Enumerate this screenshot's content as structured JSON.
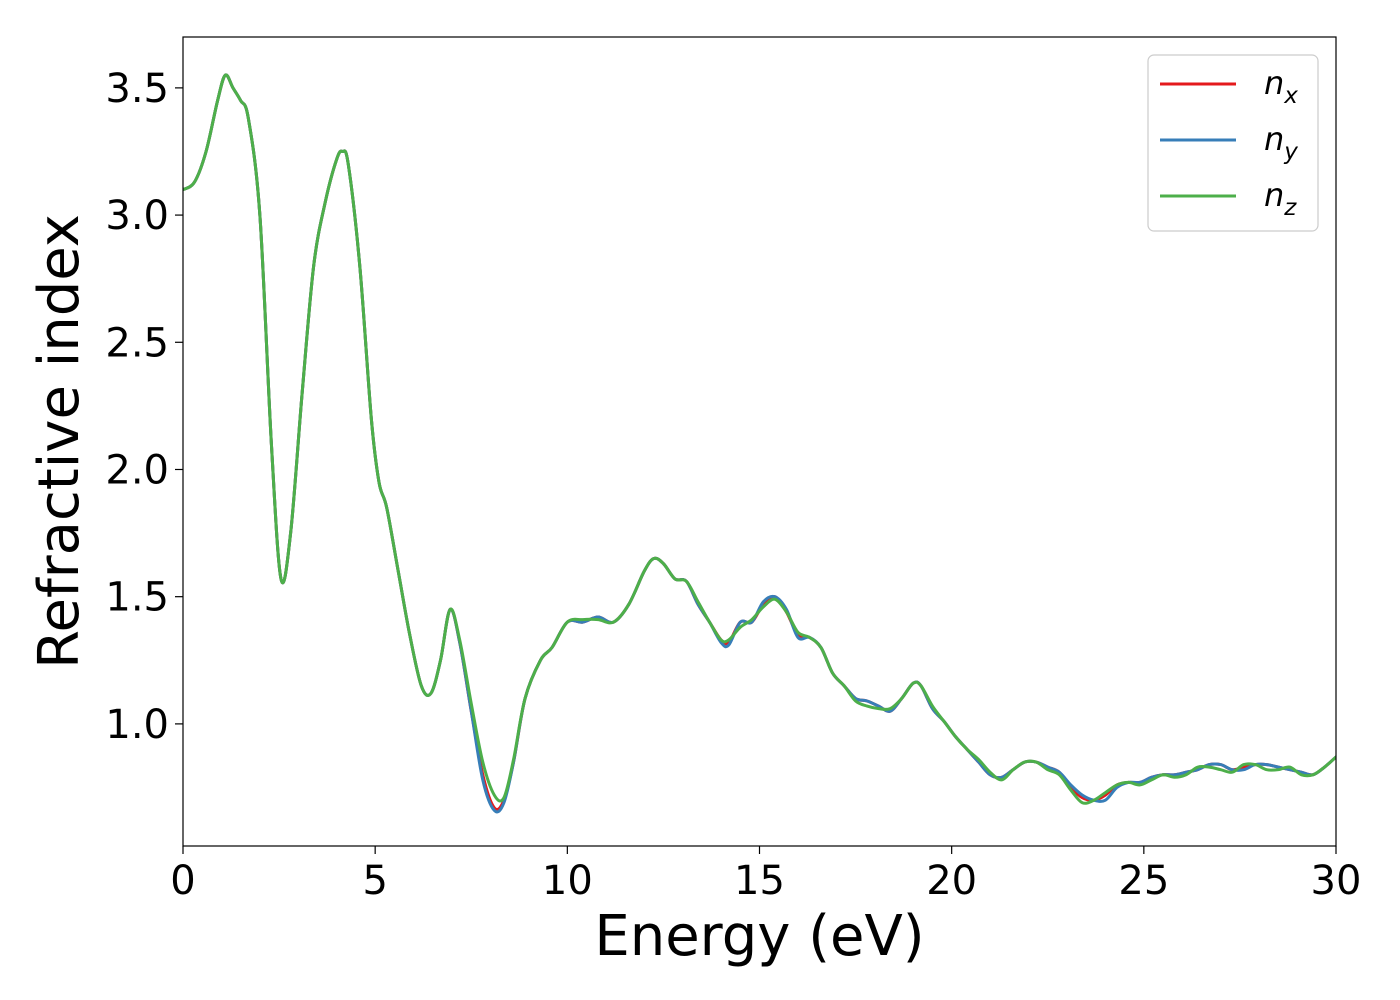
{
  "chart_data": {
    "type": "line",
    "xlabel": "Energy (eV)",
    "ylabel": "Refractive index",
    "xlim": [
      0,
      30
    ],
    "ylim": [
      0.52,
      3.7
    ],
    "xticks": [
      0,
      5,
      10,
      15,
      20,
      25,
      30
    ],
    "yticks": [
      1.0,
      1.5,
      2.0,
      2.5,
      3.0,
      3.5
    ],
    "ytick_labels": [
      "1.0",
      "1.5",
      "2.0",
      "2.5",
      "3.0",
      "3.5"
    ],
    "grid": false,
    "legend_position": "top-right",
    "series": [
      {
        "name": "n_x",
        "label_base": "n",
        "label_sub": "x",
        "color": "#e41a1c",
        "x": [
          0,
          0.3,
          0.6,
          0.9,
          1.1,
          1.3,
          1.5,
          1.7,
          2.0,
          2.3,
          2.55,
          2.8,
          3.1,
          3.4,
          3.7,
          4.0,
          4.15,
          4.3,
          4.6,
          4.9,
          5.1,
          5.3,
          5.6,
          5.9,
          6.2,
          6.45,
          6.7,
          6.95,
          7.2,
          7.5,
          7.8,
          8.1,
          8.35,
          8.6,
          8.9,
          9.3,
          9.6,
          10.0,
          10.4,
          10.8,
          11.2,
          11.6,
          12.0,
          12.25,
          12.5,
          12.8,
          13.1,
          13.4,
          13.7,
          14.0,
          14.2,
          14.5,
          14.8,
          15.1,
          15.4,
          15.7,
          16.0,
          16.3,
          16.6,
          16.9,
          17.2,
          17.5,
          17.8,
          18.1,
          18.4,
          18.7,
          19.0,
          19.2,
          19.5,
          19.8,
          20.1,
          20.4,
          20.7,
          21.0,
          21.3,
          21.6,
          21.9,
          22.2,
          22.5,
          22.8,
          23.1,
          23.4,
          23.7,
          24.0,
          24.3,
          24.6,
          24.9,
          25.2,
          25.5,
          25.8,
          26.1,
          26.4,
          26.7,
          27.0,
          27.3,
          27.6,
          27.9,
          28.2,
          28.5,
          28.8,
          29.1,
          29.4,
          29.7,
          30.0
        ],
        "y": [
          3.1,
          3.13,
          3.25,
          3.45,
          3.55,
          3.5,
          3.45,
          3.38,
          3.0,
          2.1,
          1.57,
          1.75,
          2.3,
          2.8,
          3.05,
          3.22,
          3.25,
          3.2,
          2.8,
          2.2,
          1.95,
          1.85,
          1.6,
          1.35,
          1.15,
          1.12,
          1.25,
          1.45,
          1.32,
          1.05,
          0.8,
          0.67,
          0.7,
          0.85,
          1.1,
          1.25,
          1.3,
          1.4,
          1.4,
          1.42,
          1.4,
          1.47,
          1.6,
          1.65,
          1.63,
          1.57,
          1.56,
          1.47,
          1.4,
          1.33,
          1.32,
          1.4,
          1.4,
          1.47,
          1.5,
          1.44,
          1.35,
          1.34,
          1.3,
          1.2,
          1.15,
          1.1,
          1.09,
          1.07,
          1.05,
          1.1,
          1.16,
          1.15,
          1.06,
          1.01,
          0.95,
          0.9,
          0.85,
          0.8,
          0.79,
          0.82,
          0.85,
          0.85,
          0.83,
          0.81,
          0.75,
          0.71,
          0.7,
          0.72,
          0.76,
          0.77,
          0.77,
          0.79,
          0.8,
          0.8,
          0.81,
          0.82,
          0.84,
          0.84,
          0.82,
          0.83,
          0.84,
          0.84,
          0.83,
          0.82,
          0.81,
          0.8,
          0.83,
          0.87
        ]
      },
      {
        "name": "n_y",
        "label_base": "n",
        "label_sub": "y",
        "color": "#377eb8",
        "x": [
          0,
          0.3,
          0.6,
          0.9,
          1.1,
          1.3,
          1.5,
          1.7,
          2.0,
          2.3,
          2.55,
          2.8,
          3.1,
          3.4,
          3.7,
          4.0,
          4.15,
          4.3,
          4.6,
          4.9,
          5.1,
          5.3,
          5.6,
          5.9,
          6.2,
          6.45,
          6.7,
          6.95,
          7.2,
          7.5,
          7.8,
          8.1,
          8.35,
          8.6,
          8.9,
          9.3,
          9.6,
          10.0,
          10.4,
          10.8,
          11.2,
          11.6,
          12.0,
          12.25,
          12.5,
          12.8,
          13.1,
          13.4,
          13.7,
          14.0,
          14.2,
          14.5,
          14.8,
          15.1,
          15.4,
          15.7,
          16.0,
          16.3,
          16.6,
          16.9,
          17.2,
          17.5,
          17.8,
          18.1,
          18.4,
          18.7,
          19.0,
          19.2,
          19.5,
          19.8,
          20.1,
          20.4,
          20.7,
          21.0,
          21.3,
          21.6,
          21.9,
          22.2,
          22.5,
          22.8,
          23.1,
          23.4,
          23.7,
          24.0,
          24.3,
          24.6,
          24.9,
          25.2,
          25.5,
          25.8,
          26.1,
          26.4,
          26.7,
          27.0,
          27.3,
          27.6,
          27.9,
          28.2,
          28.5,
          28.8,
          29.1,
          29.4,
          29.7,
          30.0
        ],
        "y": [
          3.1,
          3.13,
          3.25,
          3.45,
          3.55,
          3.5,
          3.45,
          3.38,
          3.0,
          2.1,
          1.57,
          1.75,
          2.3,
          2.8,
          3.05,
          3.22,
          3.25,
          3.2,
          2.8,
          2.2,
          1.95,
          1.85,
          1.6,
          1.35,
          1.15,
          1.12,
          1.25,
          1.45,
          1.32,
          1.05,
          0.78,
          0.66,
          0.69,
          0.85,
          1.1,
          1.25,
          1.3,
          1.4,
          1.4,
          1.42,
          1.4,
          1.47,
          1.6,
          1.65,
          1.63,
          1.57,
          1.56,
          1.47,
          1.4,
          1.32,
          1.31,
          1.4,
          1.4,
          1.48,
          1.5,
          1.45,
          1.34,
          1.34,
          1.3,
          1.2,
          1.15,
          1.1,
          1.09,
          1.07,
          1.05,
          1.1,
          1.16,
          1.15,
          1.06,
          1.01,
          0.95,
          0.9,
          0.85,
          0.8,
          0.79,
          0.82,
          0.85,
          0.85,
          0.83,
          0.81,
          0.76,
          0.72,
          0.7,
          0.7,
          0.75,
          0.77,
          0.77,
          0.79,
          0.8,
          0.8,
          0.81,
          0.82,
          0.84,
          0.84,
          0.82,
          0.82,
          0.84,
          0.84,
          0.83,
          0.82,
          0.81,
          0.8,
          0.83,
          0.87
        ]
      },
      {
        "name": "n_z",
        "label_base": "n",
        "label_sub": "z",
        "color": "#4daf4a",
        "x": [
          0,
          0.3,
          0.6,
          0.9,
          1.1,
          1.3,
          1.5,
          1.7,
          2.0,
          2.3,
          2.55,
          2.8,
          3.1,
          3.4,
          3.7,
          4.0,
          4.15,
          4.3,
          4.6,
          4.9,
          5.1,
          5.3,
          5.6,
          5.9,
          6.2,
          6.45,
          6.7,
          6.95,
          7.2,
          7.5,
          7.8,
          8.1,
          8.35,
          8.6,
          8.9,
          9.3,
          9.6,
          10.0,
          10.4,
          10.8,
          11.2,
          11.6,
          12.0,
          12.25,
          12.5,
          12.8,
          13.1,
          13.4,
          13.7,
          14.0,
          14.2,
          14.5,
          14.8,
          15.1,
          15.4,
          15.7,
          16.0,
          16.3,
          16.6,
          16.9,
          17.2,
          17.5,
          17.8,
          18.1,
          18.4,
          18.7,
          19.0,
          19.2,
          19.5,
          19.8,
          20.1,
          20.4,
          20.7,
          21.0,
          21.3,
          21.6,
          21.9,
          22.2,
          22.5,
          22.8,
          23.1,
          23.4,
          23.7,
          24.0,
          24.3,
          24.6,
          24.9,
          25.2,
          25.5,
          25.8,
          26.1,
          26.4,
          26.7,
          27.0,
          27.3,
          27.6,
          27.9,
          28.2,
          28.5,
          28.8,
          29.1,
          29.4,
          29.7,
          30.0
        ],
        "y": [
          3.1,
          3.13,
          3.25,
          3.45,
          3.55,
          3.5,
          3.45,
          3.38,
          3.0,
          2.1,
          1.57,
          1.75,
          2.3,
          2.8,
          3.05,
          3.22,
          3.25,
          3.2,
          2.8,
          2.2,
          1.95,
          1.85,
          1.6,
          1.35,
          1.15,
          1.12,
          1.25,
          1.45,
          1.33,
          1.08,
          0.85,
          0.72,
          0.71,
          0.86,
          1.1,
          1.25,
          1.3,
          1.4,
          1.41,
          1.41,
          1.4,
          1.47,
          1.6,
          1.65,
          1.63,
          1.57,
          1.56,
          1.48,
          1.4,
          1.33,
          1.33,
          1.38,
          1.41,
          1.46,
          1.49,
          1.44,
          1.36,
          1.34,
          1.3,
          1.2,
          1.15,
          1.09,
          1.07,
          1.06,
          1.06,
          1.1,
          1.16,
          1.15,
          1.07,
          1.01,
          0.95,
          0.9,
          0.86,
          0.81,
          0.78,
          0.82,
          0.85,
          0.85,
          0.82,
          0.8,
          0.74,
          0.69,
          0.7,
          0.73,
          0.76,
          0.77,
          0.76,
          0.78,
          0.8,
          0.79,
          0.8,
          0.83,
          0.83,
          0.82,
          0.81,
          0.84,
          0.84,
          0.82,
          0.82,
          0.83,
          0.8,
          0.8,
          0.83,
          0.87
        ]
      }
    ]
  }
}
